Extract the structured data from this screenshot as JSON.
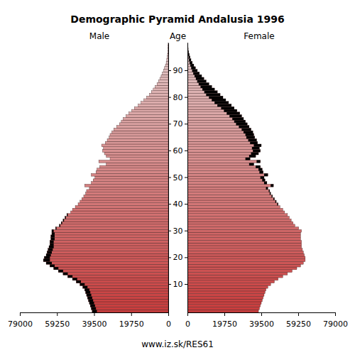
{
  "chart_data": {
    "type": "population_pyramid",
    "title": "Demographic Pyramid Andalusia 1996",
    "left_label": "Male",
    "center_label": "Age",
    "right_label": "Female",
    "footer": "www.iz.sk/RES61",
    "orientation": "horizontal",
    "categories": [
      null,
      null,
      null,
      null,
      null,
      null,
      null,
      null,
      null,
      null,
      "10",
      null,
      null,
      null,
      null,
      null,
      null,
      null,
      null,
      null,
      "20",
      null,
      null,
      null,
      null,
      null,
      null,
      null,
      null,
      null,
      "30",
      null,
      null,
      null,
      null,
      null,
      null,
      null,
      null,
      null,
      "40",
      null,
      null,
      null,
      null,
      null,
      null,
      null,
      null,
      null,
      "50",
      null,
      null,
      null,
      null,
      null,
      null,
      null,
      null,
      null,
      "60",
      null,
      null,
      null,
      null,
      null,
      null,
      null,
      null,
      null,
      "70",
      null,
      null,
      null,
      null,
      null,
      null,
      null,
      null,
      null,
      "80",
      null,
      null,
      null,
      null,
      null,
      null,
      null,
      null,
      null,
      "90",
      null,
      null,
      null,
      null,
      null,
      null,
      null,
      null,
      null,
      null
    ],
    "xlim": [
      0,
      79000
    ],
    "xticks": [
      0,
      19750,
      39500,
      59250,
      79000
    ],
    "excess_color": "#000000",
    "series": [
      {
        "name": "Male",
        "color": "#c83c3c",
        "values": [
          40500,
          41000,
          41500,
          42000,
          42500,
          43000,
          43500,
          44000,
          44500,
          45500,
          47000,
          49000,
          51000,
          53500,
          56000,
          58500,
          61000,
          63000,
          65000,
          66500,
          66000,
          65000,
          64500,
          64000,
          63500,
          63000,
          63000,
          62500,
          62500,
          62000,
          62000,
          60000,
          58000,
          57000,
          56000,
          55000,
          54000,
          52000,
          51000,
          49500,
          48000,
          47000,
          46000,
          45000,
          44000,
          43500,
          42000,
          44500,
          41000,
          40000,
          39000,
          41000,
          38500,
          38000,
          36500,
          33000,
          37000,
          31000,
          33000,
          34000,
          35000,
          34500,
          35500,
          33500,
          32500,
          31500,
          31000,
          30000,
          29000,
          27500,
          26000,
          25000,
          24000,
          22500,
          21000,
          19500,
          18000,
          16000,
          14500,
          13000,
          11500,
          10000,
          9000,
          8000,
          7000,
          6000,
          5200,
          4500,
          3800,
          3100,
          2500,
          2000,
          1500,
          1100,
          800,
          600,
          400,
          250,
          150,
          100,
          60
        ]
      },
      {
        "name": "Female",
        "color": "#c83c3c",
        "values": [
          38000,
          38500,
          39000,
          39500,
          40000,
          40500,
          41000,
          41500,
          42000,
          43000,
          44500,
          46500,
          48500,
          51000,
          53500,
          56000,
          58500,
          60500,
          62000,
          63000,
          63000,
          62500,
          62000,
          61500,
          61000,
          61000,
          61000,
          60500,
          60500,
          60500,
          61000,
          59500,
          57500,
          56500,
          55500,
          54500,
          53500,
          52000,
          51000,
          49500,
          48500,
          47500,
          46500,
          45500,
          44500,
          44000,
          43000,
          46000,
          42500,
          41500,
          41000,
          43000,
          40500,
          40000,
          39000,
          35500,
          39000,
          33500,
          36500,
          38000,
          39000,
          38500,
          39500,
          37500,
          37000,
          36000,
          35500,
          35000,
          34000,
          33000,
          32000,
          31000,
          30000,
          29000,
          28000,
          26500,
          25000,
          23500,
          22000,
          20500,
          19000,
          17500,
          16000,
          14500,
          13000,
          11500,
          10000,
          8800,
          7600,
          6400,
          5300,
          4300,
          3400,
          2600,
          1900,
          1400,
          1000,
          650,
          400,
          250,
          150
        ]
      }
    ]
  }
}
